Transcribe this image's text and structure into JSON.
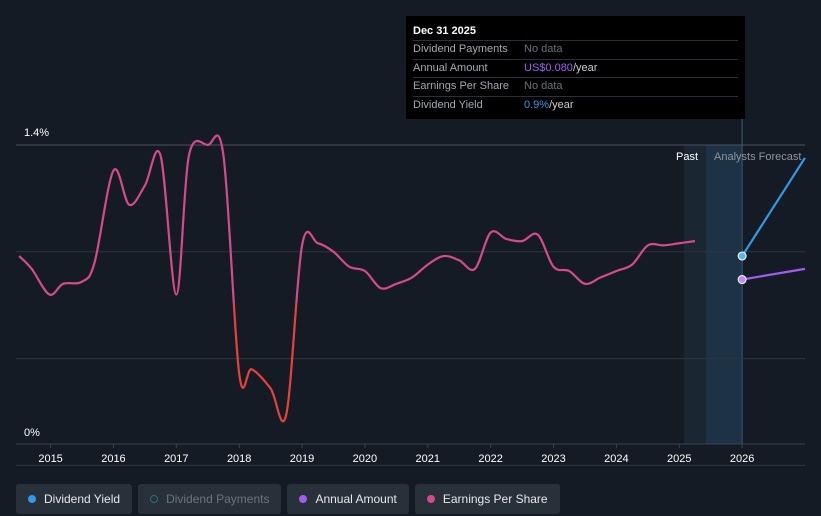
{
  "tooltip": {
    "date": "Dec 31 2025",
    "rows": [
      {
        "label": "Dividend Payments",
        "value": "No data",
        "color": "#6d7178"
      },
      {
        "label": "Annual Amount",
        "value": "US$0.080",
        "unit": "/year",
        "color": "#a25cf2"
      },
      {
        "label": "Earnings Per Share",
        "value": "No data",
        "color": "#6d7178"
      },
      {
        "label": "Dividend Yield",
        "value": "0.9%",
        "unit": "/year",
        "color": "#2f9ae8"
      }
    ]
  },
  "labels": {
    "past": "Past",
    "forecast": "Analysts Forecast"
  },
  "legend": [
    {
      "label": "Dividend Yield",
      "color": "#2f9ae8",
      "filled": true
    },
    {
      "label": "Dividend Payments",
      "color": "#2f9ae8",
      "filled": false
    },
    {
      "label": "Annual Amount",
      "color": "#a25cf2",
      "filled": true
    },
    {
      "label": "Earnings Per Share",
      "color": "#d44a8c",
      "filled": true
    }
  ],
  "chart_data": {
    "type": "line",
    "y_ticks": [
      "1.4%",
      "0%"
    ],
    "ylim": [
      0,
      1.4
    ],
    "x_ticks": [
      "2015",
      "2016",
      "2017",
      "2018",
      "2019",
      "2020",
      "2021",
      "2022",
      "2023",
      "2024",
      "2025",
      "2026"
    ],
    "xlim": [
      2014.45,
      2027.0
    ],
    "grid": true,
    "highlight_x": 2026.0,
    "series": [
      {
        "name": "Dividend Yield",
        "color": "#d44a8c",
        "low_color": "#e8413a",
        "values_x": [
          2014.5,
          2014.7,
          2014.98,
          2015.2,
          2015.5,
          2015.7,
          2016.0,
          2016.25,
          2016.5,
          2016.75,
          2017.0,
          2017.2,
          2017.5,
          2017.75,
          2018.0,
          2018.2,
          2018.5,
          2018.75,
          2019.0,
          2019.25,
          2019.5,
          2019.75,
          2020.0,
          2020.25,
          2020.5,
          2020.75,
          2021.0,
          2021.25,
          2021.5,
          2021.75,
          2022.0,
          2022.25,
          2022.5,
          2022.75,
          2023.0,
          2023.25,
          2023.5,
          2023.75,
          2024.0,
          2024.25,
          2024.5,
          2024.75,
          2025.0,
          2025.25
        ],
        "values_y": [
          0.88,
          0.82,
          0.7,
          0.75,
          0.76,
          0.85,
          1.28,
          1.12,
          1.21,
          1.35,
          0.7,
          1.35,
          1.4,
          1.35,
          0.33,
          0.35,
          0.26,
          0.14,
          0.93,
          0.94,
          0.9,
          0.83,
          0.81,
          0.73,
          0.75,
          0.78,
          0.84,
          0.88,
          0.86,
          0.82,
          0.99,
          0.96,
          0.95,
          0.98,
          0.83,
          0.81,
          0.75,
          0.78,
          0.81,
          0.84,
          0.93,
          0.93,
          0.94,
          0.95
        ]
      },
      {
        "name": "Dividend Yield",
        "color": "#2f9ae8",
        "values_x": [
          2026.0,
          2027.0
        ],
        "values_y": [
          0.88,
          1.34
        ]
      },
      {
        "name": "Annual Amount",
        "color": "#a25cf2",
        "values_x": [
          2026.0,
          2027.0
        ],
        "values_y": [
          0.77,
          0.82
        ]
      }
    ]
  }
}
